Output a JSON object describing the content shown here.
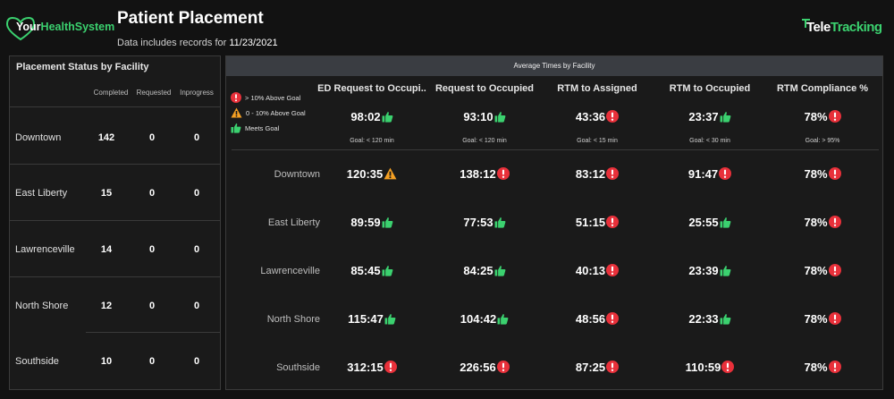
{
  "brand_left": {
    "part1": "Your",
    "part2": "HealthSystem"
  },
  "title": "Patient Placement",
  "subtitle": {
    "prefix": "Data includes records for ",
    "date": "11/23/2021"
  },
  "brand_right": {
    "part1": "Tele",
    "part2": "Tracking"
  },
  "colors": {
    "green": "#3bd16f",
    "red": "#e8303a",
    "orange": "#f5a023",
    "panel_header": "#3a3d42"
  },
  "left_panel": {
    "title": "Placement Status by Facility",
    "columns": [
      "Completed",
      "Requested",
      "Inprogress"
    ],
    "rows": [
      {
        "facility": "Downtown",
        "completed": "142",
        "requested": "0",
        "inprogress": "0"
      },
      {
        "facility": "East Liberty",
        "completed": "15",
        "requested": "0",
        "inprogress": "0"
      },
      {
        "facility": "Lawrenceville",
        "completed": "14",
        "requested": "0",
        "inprogress": "0"
      },
      {
        "facility": "North Shore",
        "completed": "12",
        "requested": "0",
        "inprogress": "0"
      },
      {
        "facility": "Southside",
        "completed": "10",
        "requested": "0",
        "inprogress": "0"
      }
    ]
  },
  "right_panel": {
    "title": "Average Times by Facility",
    "legend": [
      {
        "icon": "red-alert-icon",
        "label": "> 10% Above Goal"
      },
      {
        "icon": "orange-warning-icon",
        "label": "0 - 10% Above Goal"
      },
      {
        "icon": "green-thumbs-up-icon",
        "label": "Meets Goal"
      }
    ],
    "metrics": [
      {
        "label": "ED Request to Occupi..",
        "average": "98:02",
        "status": "good",
        "goal": "Goal: < 120 min"
      },
      {
        "label": "Request to Occupied",
        "average": "93:10",
        "status": "good",
        "goal": "Goal: < 120 min"
      },
      {
        "label": "RTM to Assigned",
        "average": "43:36",
        "status": "bad",
        "goal": "Goal: < 15 min"
      },
      {
        "label": "RTM to Occupied",
        "average": "23:37",
        "status": "good",
        "goal": "Goal: < 30 min"
      },
      {
        "label": "RTM Compliance %",
        "average": "78%",
        "status": "bad",
        "goal": "Goal: > 95%"
      }
    ],
    "rows": [
      {
        "facility": "Downtown",
        "values": [
          {
            "v": "120:35",
            "s": "warn"
          },
          {
            "v": "138:12",
            "s": "bad"
          },
          {
            "v": "83:12",
            "s": "bad"
          },
          {
            "v": "91:47",
            "s": "bad"
          },
          {
            "v": "78%",
            "s": "bad"
          }
        ]
      },
      {
        "facility": "East Liberty",
        "values": [
          {
            "v": "89:59",
            "s": "good"
          },
          {
            "v": "77:53",
            "s": "good"
          },
          {
            "v": "51:15",
            "s": "bad"
          },
          {
            "v": "25:55",
            "s": "good"
          },
          {
            "v": "78%",
            "s": "bad"
          }
        ]
      },
      {
        "facility": "Lawrenceville",
        "values": [
          {
            "v": "85:45",
            "s": "good"
          },
          {
            "v": "84:25",
            "s": "good"
          },
          {
            "v": "40:13",
            "s": "bad"
          },
          {
            "v": "23:39",
            "s": "good"
          },
          {
            "v": "78%",
            "s": "bad"
          }
        ]
      },
      {
        "facility": "North Shore",
        "values": [
          {
            "v": "115:47",
            "s": "good"
          },
          {
            "v": "104:42",
            "s": "good"
          },
          {
            "v": "48:56",
            "s": "bad"
          },
          {
            "v": "22:33",
            "s": "good"
          },
          {
            "v": "78%",
            "s": "bad"
          }
        ]
      },
      {
        "facility": "Southside",
        "values": [
          {
            "v": "312:15",
            "s": "bad"
          },
          {
            "v": "226:56",
            "s": "bad"
          },
          {
            "v": "87:25",
            "s": "bad"
          },
          {
            "v": "110:59",
            "s": "bad"
          },
          {
            "v": "78%",
            "s": "bad"
          }
        ]
      }
    ]
  }
}
